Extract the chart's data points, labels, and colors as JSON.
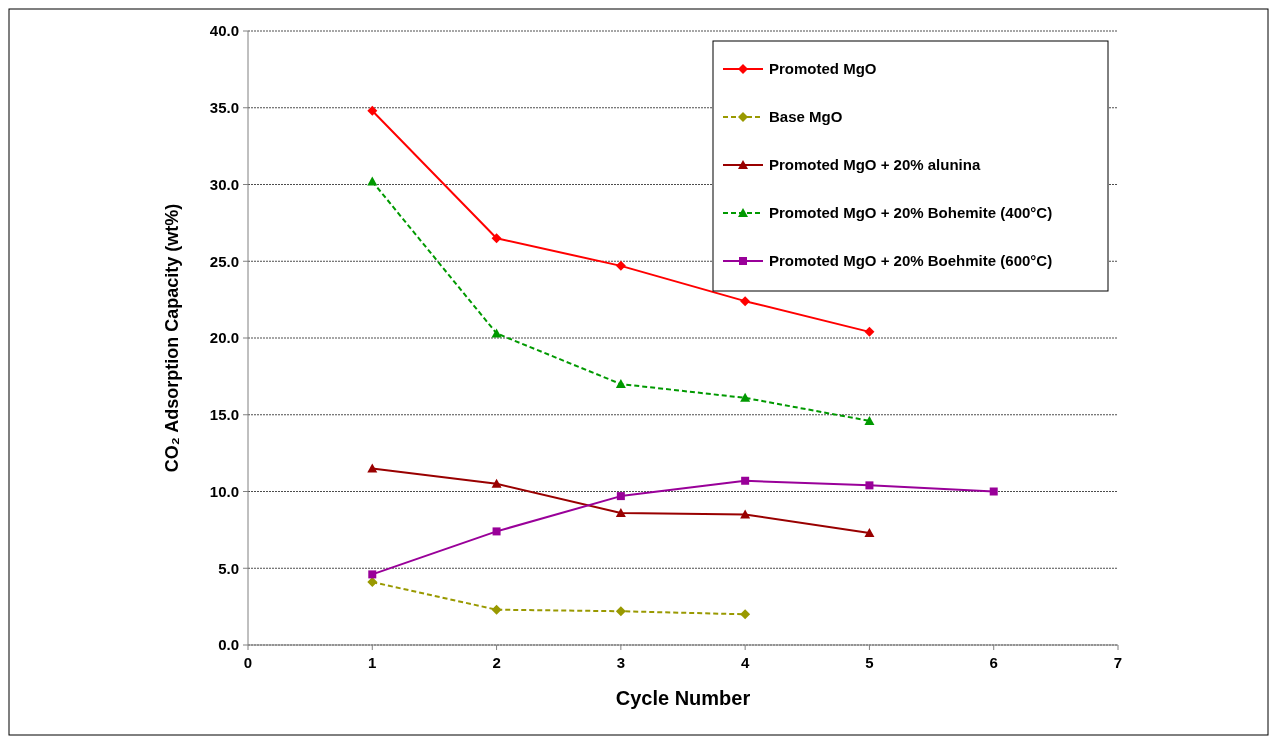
{
  "chart_data": {
    "type": "line",
    "xlabel": "Cycle Number",
    "ylabel": "CO₂ Adsorption Capacity (wt%)",
    "xlim": [
      0,
      7
    ],
    "xticks": [
      0,
      1,
      2,
      3,
      4,
      5,
      6,
      7
    ],
    "ylim": [
      0,
      40
    ],
    "yticks": [
      {
        "value": 0,
        "label": "0.0"
      },
      {
        "value": 5,
        "label": "5.0"
      },
      {
        "value": 10,
        "label": "10.0"
      },
      {
        "value": 15,
        "label": "15.0"
      },
      {
        "value": 20,
        "label": "20.0"
      },
      {
        "value": 25,
        "label": "25.0"
      },
      {
        "value": 30,
        "label": "30.0"
      },
      {
        "value": 35,
        "label": "35.0"
      },
      {
        "value": 40,
        "label": "40.0"
      }
    ],
    "grid": "y",
    "legend": "top right",
    "series": [
      {
        "name": "Promoted MgO",
        "color": "#ff0000",
        "marker": "diamond",
        "line_style": "solid",
        "x": [
          1,
          2,
          3,
          4,
          5
        ],
        "values": [
          34.8,
          26.5,
          24.7,
          22.4,
          20.4
        ]
      },
      {
        "name": "Base MgO",
        "color": "#999900",
        "marker": "diamond",
        "line_style": "dashed",
        "x": [
          1,
          2,
          3,
          4
        ],
        "values": [
          4.1,
          2.3,
          2.2,
          2.0
        ]
      },
      {
        "name": "Promoted MgO + 20% alunina",
        "color": "#990000",
        "marker": "triangle",
        "line_style": "solid",
        "x": [
          1,
          2,
          3,
          4,
          5
        ],
        "values": [
          11.5,
          10.5,
          8.6,
          8.5,
          7.3
        ]
      },
      {
        "name": "Promoted MgO + 20% Bohemite (400°C)",
        "color": "#009900",
        "marker": "triangle",
        "line_style": "dashed",
        "x": [
          1,
          2,
          3,
          4,
          5
        ],
        "values": [
          30.2,
          20.3,
          17.0,
          16.1,
          14.6
        ]
      },
      {
        "name": "Promoted MgO + 20% Boehmite (600°C)",
        "color": "#990099",
        "marker": "square",
        "line_style": "solid",
        "x": [
          1,
          2,
          3,
          4,
          5,
          6
        ],
        "values": [
          4.6,
          7.4,
          9.7,
          10.7,
          10.4,
          10.0
        ]
      }
    ]
  }
}
